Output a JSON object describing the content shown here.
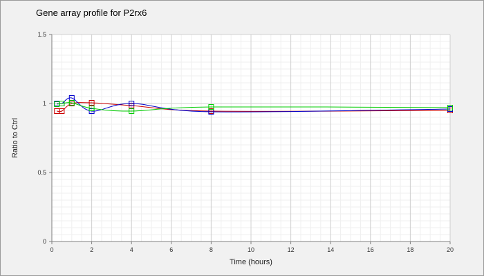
{
  "chart_data": {
    "type": "line",
    "title": "Gene array profile for P2rx6",
    "xlabel": "Time (hours)",
    "ylabel": "Ratio to Ctrl",
    "xlim": [
      0,
      20
    ],
    "ylim": [
      0,
      1.5
    ],
    "x_ticks": [
      "0",
      "2",
      "4",
      "6",
      "8",
      "10",
      "12",
      "14",
      "16",
      "18",
      "20"
    ],
    "y_ticks": [
      "0",
      "0.5",
      "1",
      "1.5"
    ],
    "grid": true,
    "legend": "none",
    "series": [
      {
        "color": "#cc0000",
        "x": [
          0.25,
          0.5,
          1,
          2,
          4,
          8,
          20
        ],
        "y": [
          0.945,
          0.945,
          1.0,
          1.005,
          0.985,
          0.945,
          0.95
        ]
      },
      {
        "color": "#0000cc",
        "x": [
          0.25,
          0.5,
          1,
          2,
          4,
          8,
          20
        ],
        "y": [
          1.0,
          1.0,
          1.04,
          0.945,
          1.0,
          0.94,
          0.96
        ]
      },
      {
        "color": "#00cc00",
        "x": [
          0.25,
          0.5,
          1,
          2,
          4,
          8,
          20
        ],
        "y": [
          0.995,
          1.0,
          1.005,
          0.965,
          0.945,
          0.975,
          0.97
        ]
      }
    ]
  }
}
